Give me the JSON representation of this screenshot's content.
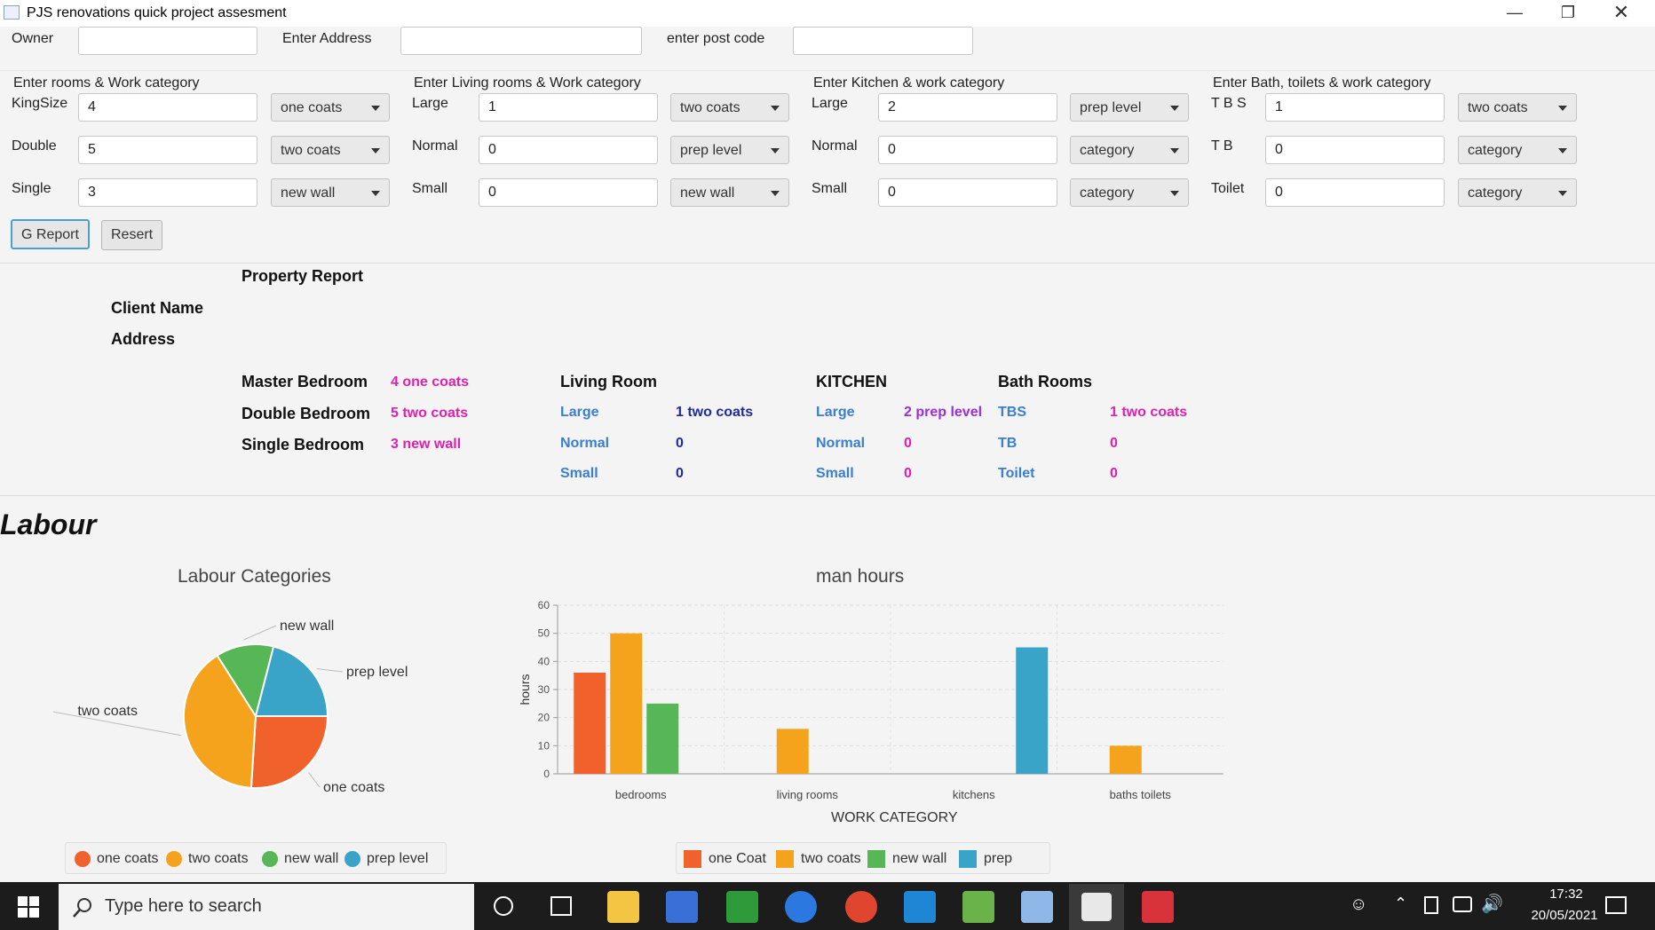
{
  "window": {
    "title": "PJS renovations quick project assesment",
    "minimize_icon": "minimize-icon",
    "restore_icon": "restore-icon",
    "close_icon": "close-icon"
  },
  "owner_row": {
    "owner_label": "Owner",
    "owner_value": "",
    "address_label": "Enter Address",
    "address_value": "",
    "postcode_label": "enter post code",
    "postcode_value": ""
  },
  "bedrooms": {
    "header": "Enter  rooms & Work category",
    "rows": [
      {
        "label": "KingSize",
        "value": "4",
        "category": "one coats"
      },
      {
        "label": "Double",
        "value": "5",
        "category": "two coats"
      },
      {
        "label": "Single",
        "value": "3",
        "category": "new wall"
      }
    ]
  },
  "living": {
    "header": "Enter Living rooms  & Work category",
    "rows": [
      {
        "label": "Large",
        "value": "1",
        "category": "two coats"
      },
      {
        "label": "Normal",
        "value": "0",
        "category": "prep level"
      },
      {
        "label": "Small",
        "value": "0",
        "category": "new wall"
      }
    ]
  },
  "kitchen": {
    "header": "Enter Kitchen & work category",
    "rows": [
      {
        "label": "Large",
        "value": "2",
        "category": "prep level"
      },
      {
        "label": "Normal",
        "value": "0",
        "category": "category"
      },
      {
        "label": "Small",
        "value": "0",
        "category": "category"
      }
    ]
  },
  "bath": {
    "header": "Enter Bath, toilets & work category",
    "rows": [
      {
        "label": "T B S",
        "value": "1",
        "category": "two coats"
      },
      {
        "label": "T B",
        "value": "0",
        "category": "category"
      },
      {
        "label": "Toilet",
        "value": "0",
        "category": "category"
      }
    ]
  },
  "buttons": {
    "report": "G Report",
    "reset": "Resert"
  },
  "report": {
    "title": "Property Report",
    "client_label": "Client Name",
    "address_label": "Address",
    "bed": [
      {
        "label": "Master Bedroom",
        "value": "4  one coats"
      },
      {
        "label": "Double Bedroom",
        "value": "5 two coats"
      },
      {
        "label": "Single Bedroom",
        "value": "3 new wall"
      }
    ],
    "living_title": "Living Room",
    "living": [
      {
        "label": "Large",
        "value": "1 two coats"
      },
      {
        "label": "Normal",
        "value": "0"
      },
      {
        "label": "Small",
        "value": "0"
      }
    ],
    "kitchen_title": "KITCHEN",
    "kitchen": [
      {
        "label": "Large",
        "value": "2 prep level"
      },
      {
        "label": "Normal",
        "value": "0"
      },
      {
        "label": "Small",
        "value": "0"
      }
    ],
    "bath_title": "Bath Rooms",
    "bath": [
      {
        "label": "TBS",
        "value": "1 two coats"
      },
      {
        "label": "TB",
        "value": "0"
      },
      {
        "label": "Toilet",
        "value": "0"
      }
    ]
  },
  "labour_heading": "Labour",
  "colors": {
    "one": "#f0612b",
    "two": "#f5a31d",
    "wall": "#57b656",
    "prep": "#3aa3c8"
  },
  "chart_data": [
    {
      "type": "pie",
      "title": "Labour Categories",
      "labels": [
        "one coats",
        "two coats",
        "new wall",
        "prep level"
      ],
      "values": [
        26,
        40,
        13,
        21
      ],
      "legend": [
        "one coats",
        "two coats",
        "new wall",
        "prep level"
      ],
      "legend_position": "bottom"
    },
    {
      "type": "bar",
      "title": "man hours",
      "xlabel": "WORK CATEGORY",
      "ylabel": "hours",
      "ylim": [
        0,
        60
      ],
      "yticks": [
        "0",
        "10",
        "20",
        "30",
        "40",
        "50",
        "60"
      ],
      "categories": [
        "bedrooms",
        "living rooms",
        "kitchens",
        "baths toilets"
      ],
      "series": [
        {
          "name": "one Coat",
          "values": [
            36,
            0,
            0,
            0
          ]
        },
        {
          "name": "two coats",
          "values": [
            50,
            16,
            0,
            10
          ]
        },
        {
          "name": "new wall",
          "values": [
            25,
            0,
            0,
            0
          ]
        },
        {
          "name": "prep",
          "values": [
            0,
            0,
            45,
            0
          ]
        }
      ],
      "grid": true,
      "legend_position": "bottom"
    }
  ],
  "taskbar": {
    "search_placeholder": "Type here to search",
    "time": "17:32",
    "date": "20/05/2021"
  }
}
